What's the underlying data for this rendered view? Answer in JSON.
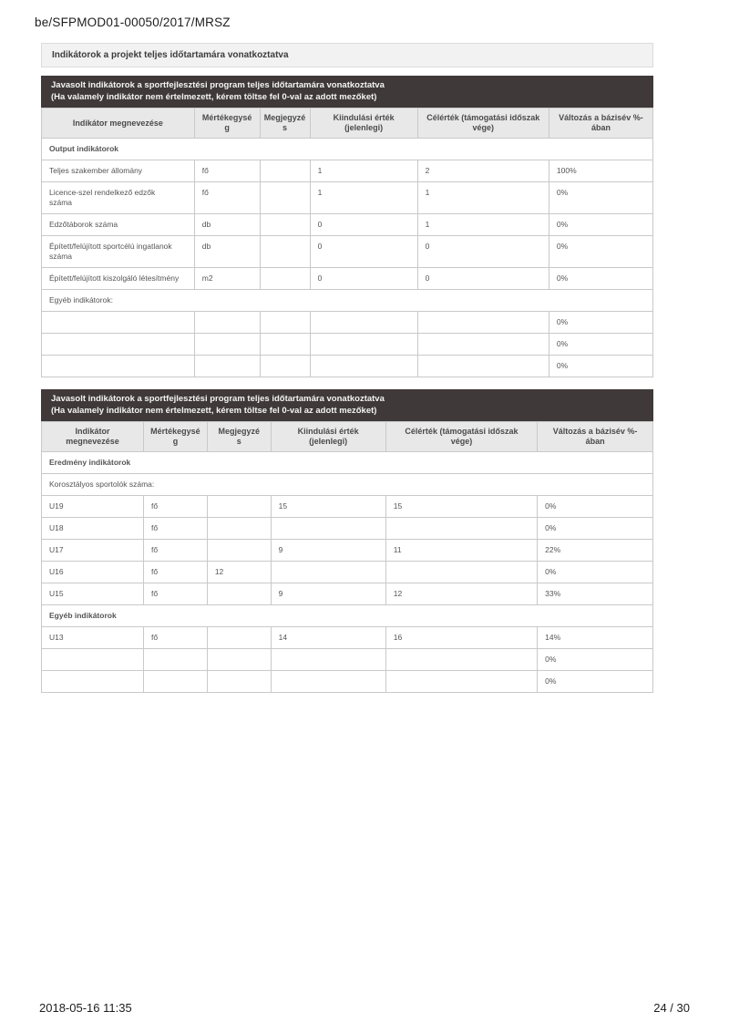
{
  "header": {
    "doc_ref": "be/SFPMOD01-00050/2017/MRSZ",
    "section_title": "Indikátorok a projekt teljes időtartamára vonatkoztatva"
  },
  "tables": [
    {
      "title_line1": "Javasolt indikátorok a sportfejlesztési program teljes időtartamára vonatkoztatva",
      "title_line2": "(Ha valamely indikátor nem értelmezett, kérem töltse fel 0-val az adott mezőket)",
      "columns": [
        "Indikátor megnevezése",
        "Mértékegysé\ng",
        "Megjegyzé\ns",
        "Kiindulási érték\n(jelenlegi)",
        "Célérték (támogatási időszak\nvége)",
        "Változás a bázisév %-\nában"
      ],
      "rows": [
        {
          "type": "section_bold",
          "label": "Output indikátorok"
        },
        {
          "type": "data",
          "cells": [
            "Teljes szakember állomány",
            "fő",
            "",
            "1",
            "2",
            "100%"
          ]
        },
        {
          "type": "data",
          "cells": [
            "Licence-szel rendelkező edzők\nszáma",
            "fő",
            "",
            "1",
            "1",
            "0%"
          ]
        },
        {
          "type": "data",
          "cells": [
            "Edzőtáborok száma",
            "db",
            "",
            "0",
            "1",
            "0%"
          ]
        },
        {
          "type": "data",
          "cells": [
            "Épített/felújított sportcélú ingatlanok\nszáma",
            "db",
            "",
            "0",
            "0",
            "0%"
          ]
        },
        {
          "type": "data",
          "cells": [
            "Épített/felújított kiszolgáló létesítmény",
            "m2",
            "",
            "0",
            "0",
            "0%"
          ]
        },
        {
          "type": "section_reg",
          "label": "Egyéb indikátorok:"
        },
        {
          "type": "data",
          "cells": [
            "",
            "",
            "",
            "",
            "",
            "0%"
          ]
        },
        {
          "type": "data",
          "cells": [
            "",
            "",
            "",
            "",
            "",
            "0%"
          ]
        },
        {
          "type": "data",
          "cells": [
            "",
            "",
            "",
            "",
            "",
            "0%"
          ]
        }
      ]
    },
    {
      "title_line1": "Javasolt indikátorok a sportfejlesztési program teljes időtartamára vonatkoztatva",
      "title_line2": "(Ha valamely indikátor nem értelmezett, kérem töltse fel 0-val az adott mezőket)",
      "columns": [
        "Indikátor\nmegnevezése",
        "Mértékegysé\ng",
        "Megjegyzé\ns",
        "Kiindulási érték\n(jelenlegi)",
        "Célérték (támogatási időszak\nvége)",
        "Változás a bázisév %-\nában"
      ],
      "rows": [
        {
          "type": "section_bold",
          "label": "Eredmény indikátorok"
        },
        {
          "type": "section_reg",
          "label": "Korosztályos sportolók száma:"
        },
        {
          "type": "data",
          "cells": [
            "U19",
            "fő",
            "",
            "15",
            "15",
            "0%"
          ]
        },
        {
          "type": "data",
          "cells": [
            "U18",
            "fő",
            "",
            "",
            "",
            "0%"
          ]
        },
        {
          "type": "data",
          "cells": [
            "U17",
            "fő",
            "",
            "9",
            "11",
            "22%"
          ]
        },
        {
          "type": "data",
          "cells": [
            "U16",
            "fő",
            "12",
            "",
            "",
            "0%"
          ]
        },
        {
          "type": "data",
          "cells": [
            "U15",
            "fő",
            "",
            "9",
            "12",
            "33%"
          ]
        },
        {
          "type": "section_bold",
          "label": "Egyéb indikátorok"
        },
        {
          "type": "data",
          "cells": [
            "U13",
            "fő",
            "",
            "14",
            "16",
            "14%"
          ]
        },
        {
          "type": "data",
          "cells": [
            "",
            "",
            "",
            "",
            "",
            "0%"
          ]
        },
        {
          "type": "data",
          "cells": [
            "",
            "",
            "",
            "",
            "",
            "0%"
          ]
        }
      ]
    }
  ],
  "footer": {
    "datetime": "2018-05-16 11:35",
    "page_number": "24 / 30"
  },
  "colors": {
    "dark_header_bg": "#3f393a",
    "dark_header_text": "#f5f4f4",
    "col_header_bg": "#e8e8e8",
    "col_header_text": "#4a4a4a",
    "border": "#c9c9c9",
    "section_bar_bg": "#f2f2f2",
    "section_bar_border": "#dcdcdc",
    "cell_text": "#555555",
    "section_bold_text": "#3d3d3d"
  }
}
